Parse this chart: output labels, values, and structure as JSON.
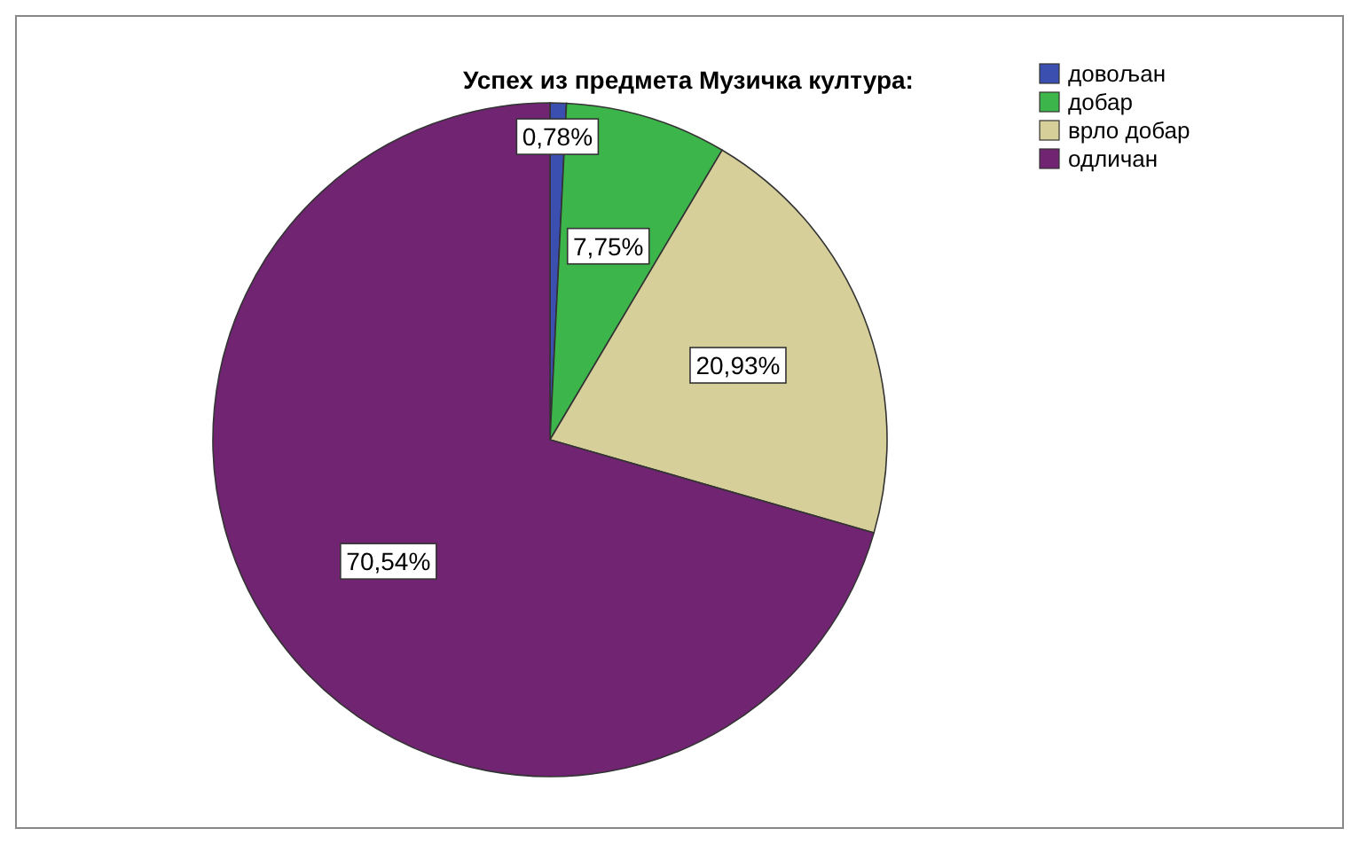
{
  "chart_data": {
    "type": "pie",
    "title": "Успех из предмета Музичка култура:",
    "categories": [
      "довољан",
      "добар",
      "врло добар",
      "одличан"
    ],
    "values": [
      0.78,
      7.75,
      20.93,
      70.54
    ],
    "colors": [
      "#3a4fb0",
      "#3cb54a",
      "#d6cf9a",
      "#702472"
    ],
    "value_labels": [
      "0,78%",
      "7,75%",
      "20,93%",
      "70,54%"
    ],
    "legend": "top right"
  }
}
